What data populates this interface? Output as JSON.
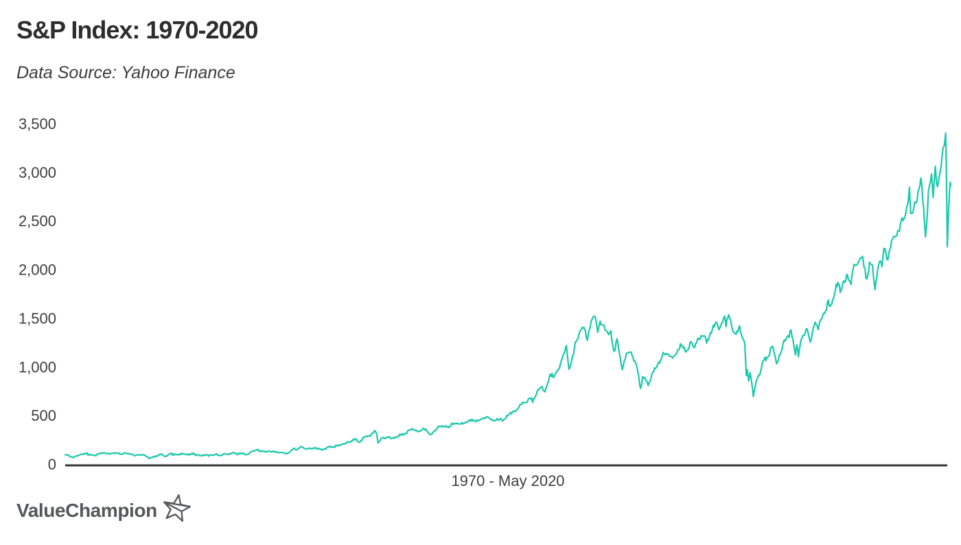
{
  "header": {
    "title": "S&P Index: 1970-2020",
    "subtitle": "Data Source: Yahoo Finance"
  },
  "footer": {
    "brand": "ValueChampion",
    "star_icon": "star-icon"
  },
  "colors": {
    "line": "#1bc8ac",
    "axis": "#333333",
    "title_text": "#2d2d2d",
    "label_text": "#3e3e3e",
    "logo_text": "#55575b"
  },
  "chart_data": {
    "type": "line",
    "title": "S&P Index: 1970-2020",
    "subtitle": "Data Source: Yahoo Finance",
    "xlabel": "1970 - May 2020",
    "ylabel": "",
    "x_range": [
      1970,
      2020.42
    ],
    "ylim": [
      0,
      3500
    ],
    "grid": false,
    "legend": false,
    "y_ticks": [
      {
        "value": 0,
        "label": "0"
      },
      {
        "value": 500,
        "label": "500"
      },
      {
        "value": 1000,
        "label": "1,000"
      },
      {
        "value": 1500,
        "label": "1,500"
      },
      {
        "value": 2000,
        "label": "2,000"
      },
      {
        "value": 2500,
        "label": "2,500"
      },
      {
        "value": 3000,
        "label": "3,000"
      },
      {
        "value": 3500,
        "label": "3,500"
      }
    ],
    "series": [
      {
        "name": "S&P Index",
        "color": "#1bc8ac",
        "points": [
          [
            1970.0,
            92
          ],
          [
            1970.2,
            86
          ],
          [
            1970.42,
            70
          ],
          [
            1970.7,
            80
          ],
          [
            1971.0,
            95
          ],
          [
            1971.3,
            101
          ],
          [
            1971.6,
            95
          ],
          [
            1971.85,
            92
          ],
          [
            1972.0,
            104
          ],
          [
            1972.5,
            108
          ],
          [
            1972.95,
            118
          ],
          [
            1973.04,
            119
          ],
          [
            1973.3,
            108
          ],
          [
            1973.55,
            104
          ],
          [
            1973.8,
            106
          ],
          [
            1974.0,
            95
          ],
          [
            1974.3,
            92
          ],
          [
            1974.55,
            84
          ],
          [
            1974.76,
            63
          ],
          [
            1974.95,
            70
          ],
          [
            1975.1,
            80
          ],
          [
            1975.45,
            92
          ],
          [
            1975.7,
            86
          ],
          [
            1976.0,
            101
          ],
          [
            1976.4,
            104
          ],
          [
            1976.75,
            105
          ],
          [
            1977.0,
            101
          ],
          [
            1977.5,
            98
          ],
          [
            1978.17,
            87
          ],
          [
            1978.6,
            104
          ],
          [
            1978.85,
            93
          ],
          [
            1979.1,
            100
          ],
          [
            1979.6,
            108
          ],
          [
            1979.8,
            101
          ],
          [
            1980.1,
            115
          ],
          [
            1980.27,
            100
          ],
          [
            1980.6,
            123
          ],
          [
            1980.9,
            140
          ],
          [
            1981.1,
            130
          ],
          [
            1981.4,
            135
          ],
          [
            1981.75,
            123
          ],
          [
            1982.0,
            118
          ],
          [
            1982.3,
            110
          ],
          [
            1982.62,
            102
          ],
          [
            1982.9,
            141
          ],
          [
            1983.1,
            150
          ],
          [
            1983.45,
            167
          ],
          [
            1983.8,
            163
          ],
          [
            1984.05,
            166
          ],
          [
            1984.55,
            148
          ],
          [
            1984.9,
            167
          ],
          [
            1985.2,
            180
          ],
          [
            1985.55,
            190
          ],
          [
            1985.95,
            210
          ],
          [
            1986.25,
            238
          ],
          [
            1986.55,
            247
          ],
          [
            1986.72,
            234
          ],
          [
            1987.0,
            265
          ],
          [
            1987.25,
            293
          ],
          [
            1987.5,
            308
          ],
          [
            1987.64,
            336
          ],
          [
            1987.74,
            318
          ],
          [
            1987.81,
            225
          ],
          [
            1987.92,
            248
          ],
          [
            1988.1,
            258
          ],
          [
            1988.4,
            262
          ],
          [
            1988.75,
            272
          ],
          [
            1989.0,
            290
          ],
          [
            1989.4,
            322
          ],
          [
            1989.75,
            352
          ],
          [
            1990.05,
            339
          ],
          [
            1990.3,
            340
          ],
          [
            1990.54,
            368
          ],
          [
            1990.78,
            295
          ],
          [
            1991.0,
            332
          ],
          [
            1991.25,
            378
          ],
          [
            1991.6,
            382
          ],
          [
            1991.95,
            400
          ],
          [
            1992.25,
            410
          ],
          [
            1992.6,
            415
          ],
          [
            1993.0,
            438
          ],
          [
            1993.5,
            450
          ],
          [
            1994.05,
            472
          ],
          [
            1994.28,
            440
          ],
          [
            1994.6,
            452
          ],
          [
            1994.95,
            460
          ],
          [
            1995.4,
            525
          ],
          [
            1995.8,
            585
          ],
          [
            1996.1,
            630
          ],
          [
            1996.4,
            655
          ],
          [
            1996.56,
            668
          ],
          [
            1996.62,
            630
          ],
          [
            1996.9,
            740
          ],
          [
            1997.15,
            790
          ],
          [
            1997.32,
            745
          ],
          [
            1997.62,
            940
          ],
          [
            1997.82,
            877
          ],
          [
            1998.05,
            980
          ],
          [
            1998.35,
            1110
          ],
          [
            1998.54,
            1187
          ],
          [
            1998.68,
            960
          ],
          [
            1998.8,
            1040
          ],
          [
            1999.05,
            1250
          ],
          [
            1999.35,
            1340
          ],
          [
            1999.55,
            1420
          ],
          [
            1999.73,
            1280
          ],
          [
            1999.95,
            1460
          ],
          [
            2000.19,
            1527
          ],
          [
            2000.32,
            1360
          ],
          [
            2000.46,
            1460
          ],
          [
            2000.68,
            1430
          ],
          [
            2000.95,
            1320
          ],
          [
            2001.07,
            1370
          ],
          [
            2001.26,
            1160
          ],
          [
            2001.42,
            1255
          ],
          [
            2001.72,
            965
          ],
          [
            2001.95,
            1150
          ],
          [
            2002.22,
            1165
          ],
          [
            2002.55,
            990
          ],
          [
            2002.76,
            777
          ],
          [
            2002.88,
            900
          ],
          [
            2003.05,
            860
          ],
          [
            2003.2,
            800
          ],
          [
            2003.55,
            995
          ],
          [
            2003.9,
            1060
          ],
          [
            2004.05,
            1135
          ],
          [
            2004.35,
            1105
          ],
          [
            2004.65,
            1105
          ],
          [
            2004.98,
            1212
          ],
          [
            2005.3,
            1165
          ],
          [
            2005.58,
            1235
          ],
          [
            2005.8,
            1185
          ],
          [
            2006.05,
            1285
          ],
          [
            2006.35,
            1315
          ],
          [
            2006.52,
            1240
          ],
          [
            2006.9,
            1400
          ],
          [
            2007.12,
            1438
          ],
          [
            2007.22,
            1390
          ],
          [
            2007.55,
            1552
          ],
          [
            2007.63,
            1432
          ],
          [
            2007.78,
            1562
          ],
          [
            2008.0,
            1385
          ],
          [
            2008.2,
            1320
          ],
          [
            2008.4,
            1420
          ],
          [
            2008.55,
            1320
          ],
          [
            2008.7,
            1250
          ],
          [
            2008.78,
            910
          ],
          [
            2008.84,
            975
          ],
          [
            2008.92,
            860
          ],
          [
            2009.0,
            930
          ],
          [
            2009.1,
            820
          ],
          [
            2009.18,
            677
          ],
          [
            2009.4,
            880
          ],
          [
            2009.55,
            920
          ],
          [
            2009.75,
            1050
          ],
          [
            2010.0,
            1120
          ],
          [
            2010.28,
            1217
          ],
          [
            2010.5,
            1025
          ],
          [
            2010.65,
            1100
          ],
          [
            2010.82,
            1185
          ],
          [
            2011.0,
            1285
          ],
          [
            2011.15,
            1330
          ],
          [
            2011.33,
            1345
          ],
          [
            2011.58,
            1120
          ],
          [
            2011.65,
            1220
          ],
          [
            2011.75,
            1100
          ],
          [
            2011.9,
            1255
          ],
          [
            2012.05,
            1340
          ],
          [
            2012.25,
            1418
          ],
          [
            2012.43,
            1280
          ],
          [
            2012.7,
            1465
          ],
          [
            2012.87,
            1400
          ],
          [
            2013.05,
            1500
          ],
          [
            2013.3,
            1565
          ],
          [
            2013.45,
            1655
          ],
          [
            2013.55,
            1590
          ],
          [
            2013.9,
            1805
          ],
          [
            2014.05,
            1845
          ],
          [
            2014.13,
            1742
          ],
          [
            2014.5,
            1962
          ],
          [
            2014.74,
            1865
          ],
          [
            2014.92,
            2075
          ],
          [
            2015.05,
            2025
          ],
          [
            2015.18,
            2105
          ],
          [
            2015.4,
            2128
          ],
          [
            2015.64,
            1868
          ],
          [
            2015.8,
            2080
          ],
          [
            2015.97,
            2045
          ],
          [
            2016.11,
            1829
          ],
          [
            2016.3,
            2065
          ],
          [
            2016.46,
            2100
          ],
          [
            2016.5,
            2001
          ],
          [
            2016.62,
            2175
          ],
          [
            2016.84,
            2135
          ],
          [
            2017.0,
            2275
          ],
          [
            2017.25,
            2360
          ],
          [
            2017.5,
            2435
          ],
          [
            2017.75,
            2500
          ],
          [
            2018.0,
            2700
          ],
          [
            2018.07,
            2872
          ],
          [
            2018.15,
            2581
          ],
          [
            2018.32,
            2655
          ],
          [
            2018.5,
            2735
          ],
          [
            2018.72,
            2930
          ],
          [
            2018.88,
            2630
          ],
          [
            2018.98,
            2351
          ],
          [
            2019.15,
            2755
          ],
          [
            2019.33,
            2945
          ],
          [
            2019.42,
            2750
          ],
          [
            2019.54,
            3025
          ],
          [
            2019.62,
            2845
          ],
          [
            2019.78,
            3005
          ],
          [
            2019.92,
            3145
          ],
          [
            2020.05,
            3260
          ],
          [
            2020.13,
            3386
          ],
          [
            2020.17,
            3130
          ],
          [
            2020.225,
            2237
          ],
          [
            2020.3,
            2660
          ],
          [
            2020.36,
            2880
          ],
          [
            2020.4,
            2940
          ],
          [
            2020.42,
            2860
          ]
        ]
      }
    ]
  }
}
